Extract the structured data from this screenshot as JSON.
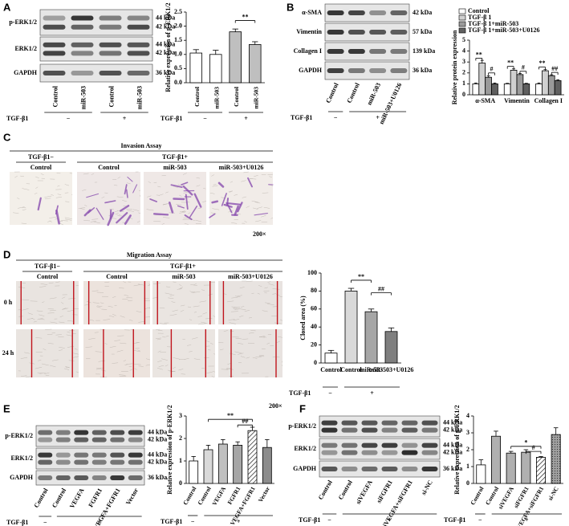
{
  "panel_labels": [
    "A",
    "B",
    "C",
    "D",
    "E",
    "F"
  ],
  "blots": [
    {
      "rows": [
        {
          "name": "p-ERK1/2",
          "kda": [
            "44 kDa",
            "42 kDa"
          ]
        },
        {
          "name": "ERK1/2",
          "kda": [
            "44 kDa",
            "42 kDa"
          ]
        },
        {
          "name": "GAPDH",
          "kda": [
            "36 kDa"
          ]
        }
      ],
      "lanes": [
        "Control",
        "miR-503",
        "Control",
        "miR-503"
      ],
      "group_label": "TGF-β1",
      "groups": [
        "−",
        "+"
      ]
    },
    {
      "rows": [
        {
          "name": "α-SMA",
          "kda": [
            "42 kDa"
          ]
        },
        {
          "name": "Vimentin",
          "kda": [
            "57 kDa"
          ]
        },
        {
          "name": "Collagen I",
          "kda": [
            "139 kDa"
          ]
        },
        {
          "name": "GAPDH",
          "kda": [
            "36 kDa"
          ]
        }
      ],
      "lanes": [
        "Control",
        "Control",
        "miR-503",
        "miR-503+U0126"
      ],
      "group_label": "TGF-β1",
      "groups": [
        "−",
        "+"
      ]
    },
    {
      "rows": [
        {
          "name": "p-ERK1/2",
          "kda": [
            "44 kDa",
            "42 kDa"
          ]
        },
        {
          "name": "ERK1/2",
          "kda": [
            "44 kDa",
            "42 kDa"
          ]
        },
        {
          "name": "GAPDH",
          "kda": [
            "36 kDa"
          ]
        }
      ],
      "lanes": [
        "Control",
        "Control",
        "VEGFA",
        "FGFR1",
        "VEGFA+FGFR1",
        "Vector"
      ],
      "group_label": "TGF-β1",
      "groups": [
        "−",
        "+"
      ]
    },
    {
      "rows": [
        {
          "name": "p-ERK1/2",
          "kda": [
            "44 kDa",
            "42 kDa"
          ]
        },
        {
          "name": "ERK1/2",
          "kda": [
            "44 kDa",
            "42 kDa"
          ]
        },
        {
          "name": "GAPDH",
          "kda": [
            "36 kDa"
          ]
        }
      ],
      "lanes": [
        "Control",
        "Control",
        "siVEGFA",
        "siFGFR1",
        "siVEGFA+siFGFR1",
        "si-NC"
      ],
      "group_label": "TGF-β1",
      "groups": [
        "−",
        "+"
      ]
    }
  ],
  "assays": [
    {
      "title": "Invasion Assay",
      "groups": [
        "TGF-β1−",
        "TGF-β1+"
      ],
      "columns": [
        "Control",
        "Control",
        "miR-503",
        "miR-503+U0126"
      ],
      "magnification": "200×"
    },
    {
      "title": "Migration Assay",
      "groups": [
        "TGF-β1−",
        "TGF-β1+"
      ],
      "columns": [
        "Control",
        "Control",
        "miR-503",
        "miR-503+U0126"
      ],
      "rows": [
        "0 h",
        "24 h"
      ],
      "magnification": "200×"
    }
  ],
  "chart_data": [
    {
      "type": "bar",
      "ylabel": "Relative expression of p-ERK1/2",
      "categories": [
        "Control",
        "miR-503",
        "Control",
        "miR-503"
      ],
      "values": [
        1.05,
        1.0,
        1.8,
        1.35
      ],
      "errors": [
        0.12,
        0.15,
        0.1,
        0.1
      ],
      "colors": [
        "#ffffff",
        "#ffffff",
        "#bfbfbf",
        "#bfbfbf"
      ],
      "ylim": [
        0,
        2.5
      ],
      "yticks": [
        {
          "value": 0,
          "label": "0.0"
        },
        0.5,
        {
          "value": 1,
          "label": "1.0"
        },
        1.5,
        {
          "value": 2,
          "label": "2.0"
        },
        2.5
      ],
      "annotations": [
        "**"
      ],
      "group_label": "TGF-β1",
      "groups": [
        "−",
        "+"
      ]
    },
    {
      "type": "grouped_bar",
      "ylabel": "Relative protein expression",
      "categories": [
        "α-SMA",
        "Vimentin",
        "Collagen I"
      ],
      "series": [
        {
          "name": "Control",
          "color": "#ffffff",
          "values": [
            1,
            1,
            1
          ],
          "errors": [
            0.08,
            0.05,
            0.08
          ]
        },
        {
          "name": "TGF-β 1",
          "color": "#d0d0d0",
          "values": [
            2.9,
            2.25,
            2.2
          ],
          "errors": [
            0.25,
            0.12,
            0.1
          ]
        },
        {
          "name": "TGF-β 1+miR-503",
          "color": "#9a9a9a",
          "values": [
            1.6,
            1.85,
            1.75
          ],
          "errors": [
            0.12,
            0.1,
            0.08
          ]
        },
        {
          "name": "TGF-β 1+miR-503+U0126",
          "color": "#606060",
          "values": [
            1.0,
            1.0,
            1.3
          ],
          "errors": [
            0.08,
            0.05,
            0.08
          ]
        }
      ],
      "ylim": [
        0,
        5
      ],
      "yticks": [
        0,
        1,
        2,
        3,
        4,
        5
      ],
      "annotations": [
        "**",
        "#",
        "**",
        "#",
        "**",
        "##"
      ],
      "legend": "top"
    },
    {
      "type": "bar",
      "ylabel": "Closed area (%)",
      "categories": [
        "Control",
        "Control",
        "miR-503",
        "miR-503+U0126"
      ],
      "values": [
        11,
        80,
        57,
        35
      ],
      "errors": [
        3,
        3,
        3,
        4
      ],
      "colors": [
        "#ffffff",
        "#d9d9d9",
        "#a6a6a6",
        "#7f7f7f"
      ],
      "ylim": [
        0,
        100
      ],
      "yticks": [
        0,
        20,
        40,
        60,
        80,
        100
      ],
      "annotations": [
        "**",
        "##"
      ],
      "group_label": "TGF-β1",
      "groups": [
        "−",
        "+"
      ]
    },
    {
      "type": "bar",
      "ylabel": "Relative expression of p-ERK1/2",
      "categories": [
        "Control",
        "Control",
        "VEGFA",
        "FGFR1",
        "VEGFA+FGFR1",
        "Vector"
      ],
      "values": [
        1.0,
        1.5,
        1.75,
        1.7,
        2.35,
        1.6
      ],
      "errors": [
        0.2,
        0.2,
        0.2,
        0.15,
        0.15,
        0.35
      ],
      "colors": [
        "#ffffff",
        "#d9d9d9",
        "#bfbfbf",
        "#a6a6a6",
        "#ffffff",
        "#8c8c8c"
      ],
      "patterns": [
        "solid",
        "solid",
        "solid",
        "solid",
        "hatch",
        "solid"
      ],
      "ylim": [
        0,
        3
      ],
      "yticks": [
        0,
        1,
        2,
        3
      ],
      "annotations": [
        "**",
        "##"
      ],
      "group_label": "TGF-β1",
      "groups": [
        "−",
        "+"
      ]
    },
    {
      "type": "bar",
      "ylabel": "Relative expression of p-ERK1/2",
      "categories": [
        "Control",
        "Control",
        "siVEGFA",
        "siFGFR1",
        "siVEGFA+siFGFR1",
        "si-NC"
      ],
      "values": [
        1.1,
        2.8,
        1.8,
        1.85,
        1.55,
        2.9
      ],
      "errors": [
        0.3,
        0.3,
        0.1,
        0.15,
        0.05,
        0.4
      ],
      "colors": [
        "#ffffff",
        "#b0b0b0",
        "#b0b0b0",
        "#b0b0b0",
        "#ffffff",
        "#bfbfbf"
      ],
      "patterns": [
        "solid",
        "solid",
        "solid",
        "solid",
        "hatch",
        "dots"
      ],
      "ylim": [
        0,
        4
      ],
      "yticks": [
        0,
        1,
        2,
        3,
        4
      ],
      "annotations": [
        "*",
        "#"
      ],
      "group_label": "TGF-β1",
      "groups": [
        "−",
        "+"
      ]
    }
  ]
}
